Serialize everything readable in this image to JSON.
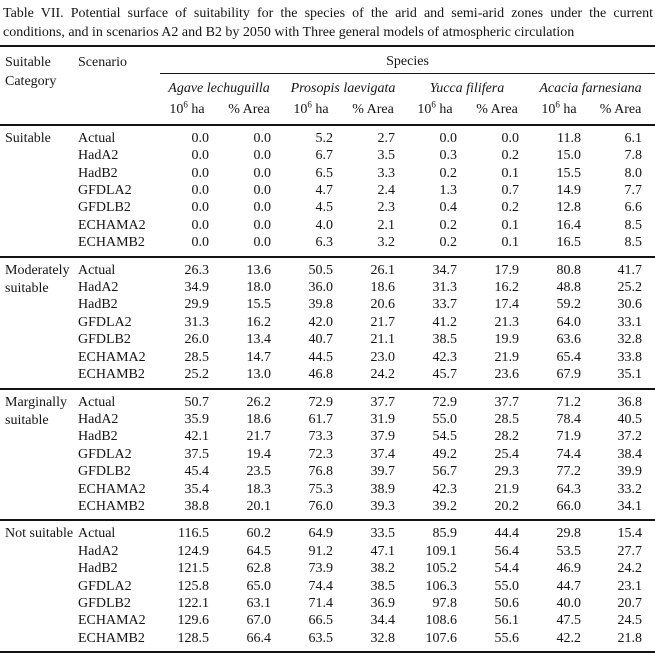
{
  "title": "Table VII. Potential surface of suitability for the species of the arid and semi-arid zones under the current conditions, and in scenarios A2 and B2 by 2050 with Three general models of atmospheric circulation",
  "table": {
    "header": {
      "category": "Suitable Category",
      "scenario": "Scenario",
      "species_label": "Species",
      "species": [
        "Agave lechuguilla",
        "Prosopis laevigata",
        "Yucca filifera",
        "Acacia farnesiana"
      ],
      "unit_base": "10",
      "unit_exp": "6",
      "unit_suffix": " ha",
      "area_label": "% Area"
    },
    "groups": [
      {
        "category": "Suitable",
        "rows": [
          {
            "scenario": "Actual",
            "values": [
              "0.0",
              "0.0",
              "5.2",
              "2.7",
              "0.0",
              "0.0",
              "11.8",
              "6.1"
            ]
          },
          {
            "scenario": "HadA2",
            "values": [
              "0.0",
              "0.0",
              "6.7",
              "3.5",
              "0.3",
              "0.2",
              "15.0",
              "7.8"
            ]
          },
          {
            "scenario": "HadB2",
            "values": [
              "0.0",
              "0.0",
              "6.5",
              "3.3",
              "0.2",
              "0.1",
              "15.5",
              "8.0"
            ]
          },
          {
            "scenario": "GFDLA2",
            "values": [
              "0.0",
              "0.0",
              "4.7",
              "2.4",
              "1.3",
              "0.7",
              "14.9",
              "7.7"
            ]
          },
          {
            "scenario": "GFDLB2",
            "values": [
              "0.0",
              "0.0",
              "4.5",
              "2.3",
              "0.4",
              "0.2",
              "12.8",
              "6.6"
            ]
          },
          {
            "scenario": "ECHAMA2",
            "values": [
              "0.0",
              "0.0",
              "4.0",
              "2.1",
              "0.2",
              "0.1",
              "16.4",
              "8.5"
            ]
          },
          {
            "scenario": "ECHAMB2",
            "values": [
              "0.0",
              "0.0",
              "6.3",
              "3.2",
              "0.2",
              "0.1",
              "16.5",
              "8.5"
            ]
          }
        ]
      },
      {
        "category": "Moderately suitable",
        "rows": [
          {
            "scenario": "Actual",
            "values": [
              "26.3",
              "13.6",
              "50.5",
              "26.1",
              "34.7",
              "17.9",
              "80.8",
              "41.7"
            ]
          },
          {
            "scenario": "HadA2",
            "values": [
              "34.9",
              "18.0",
              "36.0",
              "18.6",
              "31.3",
              "16.2",
              "48.8",
              "25.2"
            ]
          },
          {
            "scenario": "HadB2",
            "values": [
              "29.9",
              "15.5",
              "39.8",
              "20.6",
              "33.7",
              "17.4",
              "59.2",
              "30.6"
            ]
          },
          {
            "scenario": "GFDLA2",
            "values": [
              "31.3",
              "16.2",
              "42.0",
              "21.7",
              "41.2",
              "21.3",
              "64.0",
              "33.1"
            ]
          },
          {
            "scenario": "GFDLB2",
            "values": [
              "26.0",
              "13.4",
              "40.7",
              "21.1",
              "38.5",
              "19.9",
              "63.6",
              "32.8"
            ]
          },
          {
            "scenario": "ECHAMA2",
            "values": [
              "28.5",
              "14.7",
              "44.5",
              "23.0",
              "42.3",
              "21.9",
              "65.4",
              "33.8"
            ]
          },
          {
            "scenario": "ECHAMB2",
            "values": [
              "25.2",
              "13.0",
              "46.8",
              "24.2",
              "45.7",
              "23.6",
              "67.9",
              "35.1"
            ]
          }
        ]
      },
      {
        "category": "Marginally suitable",
        "rows": [
          {
            "scenario": "Actual",
            "values": [
              "50.7",
              "26.2",
              "72.9",
              "37.7",
              "72.9",
              "37.7",
              "71.2",
              "36.8"
            ]
          },
          {
            "scenario": "HadA2",
            "values": [
              "35.9",
              "18.6",
              "61.7",
              "31.9",
              "55.0",
              "28.5",
              "78.4",
              "40.5"
            ]
          },
          {
            "scenario": "HadB2",
            "values": [
              "42.1",
              "21.7",
              "73.3",
              "37.9",
              "54.5",
              "28.2",
              "71.9",
              "37.2"
            ]
          },
          {
            "scenario": "GFDLA2",
            "values": [
              "37.5",
              "19.4",
              "72.3",
              "37.4",
              "49.2",
              "25.4",
              "74.4",
              "38.4"
            ]
          },
          {
            "scenario": "GFDLB2",
            "values": [
              "45.4",
              "23.5",
              "76.8",
              "39.7",
              "56.7",
              "29.3",
              "77.2",
              "39.9"
            ]
          },
          {
            "scenario": "ECHAMA2",
            "values": [
              "35.4",
              "18.3",
              "75.3",
              "38.9",
              "42.3",
              "21.9",
              "64.3",
              "33.2"
            ]
          },
          {
            "scenario": "ECHAMB2",
            "values": [
              "38.8",
              "20.1",
              "76.0",
              "39.3",
              "39.2",
              "20.2",
              "66.0",
              "34.1"
            ]
          }
        ]
      },
      {
        "category": "Not suitable",
        "rows": [
          {
            "scenario": "Actual",
            "values": [
              "116.5",
              "60.2",
              "64.9",
              "33.5",
              "85.9",
              "44.4",
              "29.8",
              "15.4"
            ]
          },
          {
            "scenario": "HadA2",
            "values": [
              "124.9",
              "64.5",
              "91.2",
              "47.1",
              "109.1",
              "56.4",
              "53.5",
              "27.7"
            ]
          },
          {
            "scenario": "HadB2",
            "values": [
              "121.5",
              "62.8",
              "73.9",
              "38.2",
              "105.2",
              "54.4",
              "46.9",
              "24.2"
            ]
          },
          {
            "scenario": "GFDLA2",
            "values": [
              "125.8",
              "65.0",
              "74.4",
              "38.5",
              "106.3",
              "55.0",
              "44.7",
              "23.1"
            ]
          },
          {
            "scenario": "GFDLB2",
            "values": [
              "122.1",
              "63.1",
              "71.4",
              "36.9",
              "97.8",
              "50.6",
              "40.0",
              "20.7"
            ]
          },
          {
            "scenario": "ECHAMA2",
            "values": [
              "129.6",
              "67.0",
              "66.5",
              "34.4",
              "108.6",
              "56.1",
              "47.5",
              "24.5"
            ]
          },
          {
            "scenario": "ECHAMB2",
            "values": [
              "128.5",
              "66.4",
              "63.5",
              "32.8",
              "107.6",
              "55.6",
              "42.2",
              "21.8"
            ]
          }
        ]
      }
    ]
  }
}
